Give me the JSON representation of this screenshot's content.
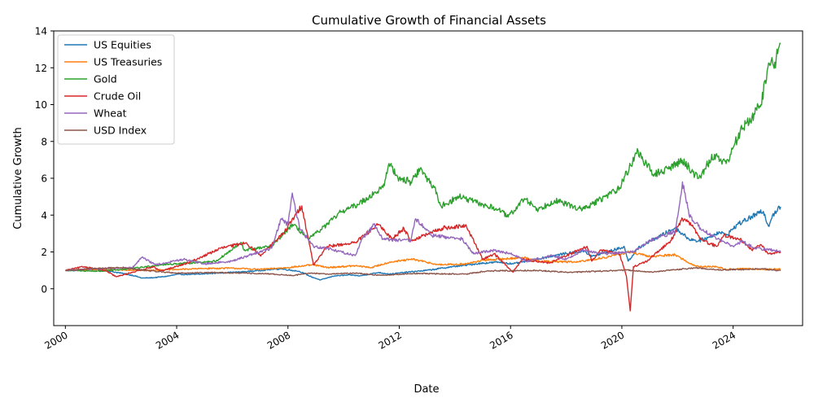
{
  "chart_data": {
    "type": "line",
    "title": "Cumulative Growth of Financial Assets",
    "xlabel": "Date",
    "ylabel": "Cumulative Growth",
    "xlim": [
      "1999-08-01",
      "2026-07-01"
    ],
    "ylim": [
      -2,
      14
    ],
    "x_ticks": [
      "2000",
      "2004",
      "2008",
      "2012",
      "2016",
      "2020",
      "2024"
    ],
    "y_ticks": [
      0,
      2,
      4,
      6,
      8,
      10,
      12,
      14
    ],
    "legend_position": "upper-left",
    "grid": false,
    "series": [
      {
        "name": "US Equities",
        "color": "#1f77b4",
        "points": [
          [
            "2000-01-03",
            1.0
          ],
          [
            "2000-06-01",
            1.0
          ],
          [
            "2001-01-01",
            1.05
          ],
          [
            "2001-06-01",
            1.0
          ],
          [
            "2002-01-01",
            0.85
          ],
          [
            "2002-07-01",
            0.7
          ],
          [
            "2002-10-01",
            0.58
          ],
          [
            "2003-03-01",
            0.6
          ],
          [
            "2003-09-01",
            0.68
          ],
          [
            "2004-01-01",
            0.78
          ],
          [
            "2004-09-01",
            0.78
          ],
          [
            "2005-06-01",
            0.85
          ],
          [
            "2006-06-01",
            0.92
          ],
          [
            "2007-06-01",
            1.05
          ],
          [
            "2007-10-01",
            1.08
          ],
          [
            "2008-06-01",
            0.95
          ],
          [
            "2008-11-01",
            0.65
          ],
          [
            "2009-03-01",
            0.48
          ],
          [
            "2009-09-01",
            0.7
          ],
          [
            "2010-04-01",
            0.75
          ],
          [
            "2010-08-01",
            0.7
          ],
          [
            "2011-04-01",
            0.88
          ],
          [
            "2011-09-01",
            0.8
          ],
          [
            "2012-06-01",
            0.92
          ],
          [
            "2013-01-01",
            1.0
          ],
          [
            "2013-12-01",
            1.2
          ],
          [
            "2014-12-01",
            1.38
          ],
          [
            "2015-08-01",
            1.45
          ],
          [
            "2016-02-01",
            1.35
          ],
          [
            "2016-12-01",
            1.6
          ],
          [
            "2017-12-01",
            1.9
          ],
          [
            "2018-09-01",
            2.05
          ],
          [
            "2018-12-01",
            1.75
          ],
          [
            "2019-12-01",
            2.2
          ],
          [
            "2020-02-01",
            2.3
          ],
          [
            "2020-03-23",
            1.5
          ],
          [
            "2020-08-01",
            2.2
          ],
          [
            "2020-12-01",
            2.5
          ],
          [
            "2021-06-01",
            2.9
          ],
          [
            "2021-12-01",
            3.3
          ],
          [
            "2022-06-01",
            2.7
          ],
          [
            "2022-10-01",
            2.6
          ],
          [
            "2023-03-01",
            2.8
          ],
          [
            "2023-07-01",
            3.1
          ],
          [
            "2023-10-01",
            2.9
          ],
          [
            "2024-03-01",
            3.5
          ],
          [
            "2024-12-01",
            4.1
          ],
          [
            "2025-02-01",
            4.2
          ],
          [
            "2025-04-08",
            3.4
          ],
          [
            "2025-06-01",
            4.0
          ],
          [
            "2025-09-15",
            4.45
          ]
        ]
      },
      {
        "name": "US Treasuries",
        "color": "#ff7f0e",
        "points": [
          [
            "2000-01-03",
            1.0
          ],
          [
            "2001-01-01",
            1.05
          ],
          [
            "2002-01-01",
            1.02
          ],
          [
            "2003-01-01",
            1.0
          ],
          [
            "2004-01-01",
            1.05
          ],
          [
            "2005-01-01",
            1.1
          ],
          [
            "2006-01-01",
            1.12
          ],
          [
            "2007-01-01",
            1.05
          ],
          [
            "2008-01-01",
            1.15
          ],
          [
            "2008-12-01",
            1.3
          ],
          [
            "2009-06-01",
            1.15
          ],
          [
            "2010-06-01",
            1.25
          ],
          [
            "2011-01-01",
            1.15
          ],
          [
            "2011-09-01",
            1.45
          ],
          [
            "2012-07-01",
            1.6
          ],
          [
            "2013-06-01",
            1.3
          ],
          [
            "2014-06-01",
            1.35
          ],
          [
            "2015-01-01",
            1.55
          ],
          [
            "2016-07-01",
            1.7
          ],
          [
            "2017-01-01",
            1.5
          ],
          [
            "2018-06-01",
            1.45
          ],
          [
            "2019-08-01",
            1.75
          ],
          [
            "2020-04-01",
            2.0
          ],
          [
            "2021-01-01",
            1.75
          ],
          [
            "2021-12-01",
            1.85
          ],
          [
            "2022-06-01",
            1.4
          ],
          [
            "2022-10-01",
            1.2
          ],
          [
            "2023-06-01",
            1.2
          ],
          [
            "2023-10-01",
            1.05
          ],
          [
            "2024-06-01",
            1.1
          ],
          [
            "2025-01-01",
            1.05
          ],
          [
            "2025-09-15",
            1.08
          ]
        ]
      },
      {
        "name": "Gold",
        "color": "#2ca02c",
        "points": [
          [
            "2000-01-03",
            1.0
          ],
          [
            "2001-04-01",
            0.95
          ],
          [
            "2002-06-01",
            1.1
          ],
          [
            "2003-06-01",
            1.3
          ],
          [
            "2004-06-01",
            1.4
          ],
          [
            "2005-06-01",
            1.5
          ],
          [
            "2006-05-01",
            2.5
          ],
          [
            "2006-06-01",
            2.1
          ],
          [
            "2007-06-01",
            2.3
          ],
          [
            "2008-03-01",
            3.5
          ],
          [
            "2008-10-01",
            2.7
          ],
          [
            "2009-06-01",
            3.5
          ],
          [
            "2009-12-01",
            4.2
          ],
          [
            "2010-06-01",
            4.5
          ],
          [
            "2010-12-01",
            5.0
          ],
          [
            "2011-06-01",
            5.5
          ],
          [
            "2011-08-20",
            6.8
          ],
          [
            "2012-01-01",
            6.0
          ],
          [
            "2012-06-01",
            5.8
          ],
          [
            "2012-10-01",
            6.5
          ],
          [
            "2013-04-01",
            5.5
          ],
          [
            "2013-07-01",
            4.5
          ],
          [
            "2014-03-01",
            5.0
          ],
          [
            "2014-12-01",
            4.6
          ],
          [
            "2015-08-01",
            4.3
          ],
          [
            "2015-12-01",
            3.9
          ],
          [
            "2016-07-01",
            4.9
          ],
          [
            "2017-01-01",
            4.3
          ],
          [
            "2017-08-01",
            4.8
          ],
          [
            "2018-08-01",
            4.3
          ],
          [
            "2019-06-01",
            5.0
          ],
          [
            "2019-12-01",
            5.5
          ],
          [
            "2020-08-01",
            7.5
          ],
          [
            "2020-11-01",
            6.8
          ],
          [
            "2021-03-01",
            6.2
          ],
          [
            "2021-09-01",
            6.5
          ],
          [
            "2022-03-01",
            7.0
          ],
          [
            "2022-10-01",
            6.0
          ],
          [
            "2023-05-01",
            7.3
          ],
          [
            "2023-10-01",
            6.8
          ],
          [
            "2024-04-01",
            8.5
          ],
          [
            "2024-10-01",
            9.5
          ],
          [
            "2025-01-01",
            10.0
          ],
          [
            "2025-04-01",
            12.0
          ],
          [
            "2025-07-01",
            12.3
          ],
          [
            "2025-09-15",
            13.3
          ]
        ]
      },
      {
        "name": "Crude Oil",
        "color": "#d62728",
        "points": [
          [
            "2000-01-03",
            1.0
          ],
          [
            "2000-09-01",
            1.2
          ],
          [
            "2001-06-01",
            1.0
          ],
          [
            "2001-11-01",
            0.65
          ],
          [
            "2002-06-01",
            0.9
          ],
          [
            "2003-03-01",
            1.2
          ],
          [
            "2003-06-01",
            0.95
          ],
          [
            "2004-06-01",
            1.4
          ],
          [
            "2005-08-01",
            2.2
          ],
          [
            "2006-07-01",
            2.5
          ],
          [
            "2007-01-01",
            1.8
          ],
          [
            "2007-11-01",
            3.0
          ],
          [
            "2008-07-01",
            4.5
          ],
          [
            "2008-12-01",
            1.3
          ],
          [
            "2009-06-01",
            2.3
          ],
          [
            "2010-06-01",
            2.5
          ],
          [
            "2011-04-01",
            3.5
          ],
          [
            "2011-10-01",
            2.7
          ],
          [
            "2012-03-01",
            3.3
          ],
          [
            "2012-06-01",
            2.6
          ],
          [
            "2013-08-01",
            3.3
          ],
          [
            "2014-06-01",
            3.4
          ],
          [
            "2015-01-01",
            1.6
          ],
          [
            "2015-06-01",
            1.9
          ],
          [
            "2016-02-01",
            0.9
          ],
          [
            "2016-06-01",
            1.6
          ],
          [
            "2017-06-01",
            1.4
          ],
          [
            "2018-10-01",
            2.3
          ],
          [
            "2018-12-01",
            1.5
          ],
          [
            "2019-04-01",
            2.1
          ],
          [
            "2019-12-01",
            1.9
          ],
          [
            "2020-03-01",
            0.7
          ],
          [
            "2020-04-20",
            -1.2
          ],
          [
            "2020-06-01",
            1.2
          ],
          [
            "2020-12-01",
            1.5
          ],
          [
            "2021-10-01",
            2.6
          ],
          [
            "2022-03-08",
            3.8
          ],
          [
            "2022-06-01",
            3.6
          ],
          [
            "2022-12-01",
            2.6
          ],
          [
            "2023-06-01",
            2.3
          ],
          [
            "2023-09-01",
            2.9
          ],
          [
            "2024-04-01",
            2.7
          ],
          [
            "2024-09-01",
            2.1
          ],
          [
            "2025-01-01",
            2.4
          ],
          [
            "2025-04-01",
            1.9
          ],
          [
            "2025-09-15",
            2.0
          ]
        ]
      },
      {
        "name": "Wheat",
        "color": "#9467bd",
        "points": [
          [
            "2000-01-03",
            1.0
          ],
          [
            "2000-08-01",
            1.05
          ],
          [
            "2001-06-01",
            1.1
          ],
          [
            "2002-06-01",
            1.15
          ],
          [
            "2002-10-01",
            1.7
          ],
          [
            "2003-04-01",
            1.3
          ],
          [
            "2003-12-01",
            1.5
          ],
          [
            "2004-04-01",
            1.6
          ],
          [
            "2005-01-01",
            1.35
          ],
          [
            "2006-01-01",
            1.5
          ],
          [
            "2006-10-01",
            1.9
          ],
          [
            "2007-06-01",
            2.2
          ],
          [
            "2007-10-01",
            3.8
          ],
          [
            "2008-01-01",
            3.5
          ],
          [
            "2008-02-27",
            5.2
          ],
          [
            "2008-06-01",
            3.3
          ],
          [
            "2008-12-01",
            2.3
          ],
          [
            "2009-06-01",
            2.2
          ],
          [
            "2010-06-01",
            1.8
          ],
          [
            "2010-09-01",
            2.7
          ],
          [
            "2011-02-01",
            3.5
          ],
          [
            "2011-06-01",
            2.7
          ],
          [
            "2012-06-01",
            2.6
          ],
          [
            "2012-08-01",
            3.8
          ],
          [
            "2013-03-01",
            2.9
          ],
          [
            "2014-04-01",
            2.7
          ],
          [
            "2014-09-01",
            1.9
          ],
          [
            "2015-06-01",
            2.1
          ],
          [
            "2016-01-01",
            1.9
          ],
          [
            "2016-08-01",
            1.5
          ],
          [
            "2017-07-01",
            1.8
          ],
          [
            "2018-01-01",
            1.6
          ],
          [
            "2018-08-01",
            2.1
          ],
          [
            "2019-06-01",
            1.9
          ],
          [
            "2020-06-01",
            2.0
          ],
          [
            "2021-01-01",
            2.6
          ],
          [
            "2021-12-01",
            3.1
          ],
          [
            "2022-03-07",
            5.8
          ],
          [
            "2022-06-01",
            4.0
          ],
          [
            "2022-10-01",
            3.4
          ],
          [
            "2023-06-01",
            2.7
          ],
          [
            "2024-01-01",
            2.3
          ],
          [
            "2024-05-01",
            2.6
          ],
          [
            "2024-10-01",
            2.2
          ],
          [
            "2025-06-01",
            2.1
          ],
          [
            "2025-09-15",
            2.0
          ]
        ]
      },
      {
        "name": "USD Index",
        "color": "#8c564b",
        "points": [
          [
            "2000-01-03",
            1.0
          ],
          [
            "2001-06-01",
            1.12
          ],
          [
            "2002-01-01",
            1.15
          ],
          [
            "2003-01-01",
            0.98
          ],
          [
            "2004-01-01",
            0.85
          ],
          [
            "2005-06-01",
            0.88
          ],
          [
            "2006-06-01",
            0.85
          ],
          [
            "2007-06-01",
            0.8
          ],
          [
            "2008-03-01",
            0.72
          ],
          [
            "2008-11-01",
            0.85
          ],
          [
            "2009-06-01",
            0.8
          ],
          [
            "2010-06-01",
            0.85
          ],
          [
            "2011-05-01",
            0.73
          ],
          [
            "2012-07-01",
            0.83
          ],
          [
            "2013-06-01",
            0.81
          ],
          [
            "2014-06-01",
            0.8
          ],
          [
            "2015-03-01",
            0.97
          ],
          [
            "2016-12-01",
            1.0
          ],
          [
            "2017-06-01",
            0.95
          ],
          [
            "2018-02-01",
            0.89
          ],
          [
            "2019-06-01",
            0.97
          ],
          [
            "2020-03-01",
            1.02
          ],
          [
            "2021-01-01",
            0.9
          ],
          [
            "2022-09-01",
            1.14
          ],
          [
            "2023-06-01",
            1.03
          ],
          [
            "2024-06-01",
            1.05
          ],
          [
            "2025-01-01",
            1.09
          ],
          [
            "2025-09-15",
            0.98
          ]
        ]
      }
    ]
  }
}
